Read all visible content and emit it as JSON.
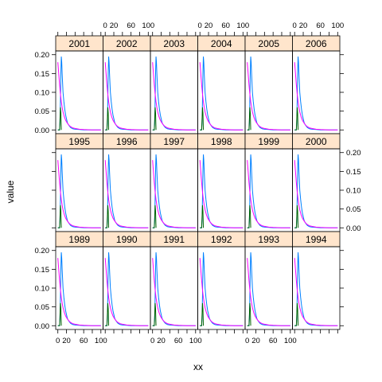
{
  "chart_data": {
    "type": "line",
    "layout": "lattice 6 columns x 3 rows",
    "xlabel": "xx",
    "ylabel": "value",
    "xlim": [
      -5,
      105
    ],
    "ylim": [
      -0.01,
      0.21
    ],
    "x_ticks": [
      0,
      20,
      60,
      100
    ],
    "x_tick_labels": [
      "0",
      "20",
      "60",
      "100"
    ],
    "y_ticks": [
      0.0,
      0.05,
      0.1,
      0.15,
      0.2
    ],
    "y_tick_labels": [
      "0.00",
      "0.05",
      "0.10",
      "0.15",
      "0.20"
    ],
    "panels": [
      {
        "label": "2001",
        "row": 0,
        "col": 0
      },
      {
        "label": "2002",
        "row": 0,
        "col": 1
      },
      {
        "label": "2003",
        "row": 0,
        "col": 2
      },
      {
        "label": "2004",
        "row": 0,
        "col": 3
      },
      {
        "label": "2005",
        "row": 0,
        "col": 4
      },
      {
        "label": "2006",
        "row": 0,
        "col": 5
      },
      {
        "label": "1995",
        "row": 1,
        "col": 0
      },
      {
        "label": "1996",
        "row": 1,
        "col": 1
      },
      {
        "label": "1997",
        "row": 1,
        "col": 2
      },
      {
        "label": "1998",
        "row": 1,
        "col": 3
      },
      {
        "label": "1999",
        "row": 1,
        "col": 4
      },
      {
        "label": "2000",
        "row": 1,
        "col": 5
      },
      {
        "label": "1989",
        "row": 2,
        "col": 0
      },
      {
        "label": "1990",
        "row": 2,
        "col": 1
      },
      {
        "label": "1991",
        "row": 2,
        "col": 2
      },
      {
        "label": "1992",
        "row": 2,
        "col": 3
      },
      {
        "label": "1993",
        "row": 2,
        "col": 4
      },
      {
        "label": "1994",
        "row": 2,
        "col": 5
      }
    ],
    "series": [
      {
        "color": "#0080ff",
        "x": [
          0,
          4,
          5,
          6,
          7,
          8,
          9,
          10,
          11,
          12,
          14,
          16,
          18,
          20,
          22,
          24,
          27,
          30,
          35,
          40,
          50,
          60,
          80,
          100
        ],
        "values": [
          0.0,
          0.0,
          0.02,
          0.08,
          0.15,
          0.195,
          0.18,
          0.15,
          0.125,
          0.1,
          0.075,
          0.055,
          0.04,
          0.03,
          0.02,
          0.015,
          0.01,
          0.006,
          0.003,
          0.002,
          0.001,
          0.0,
          0.0,
          0.0
        ]
      },
      {
        "color": "#ff00ff",
        "x": [
          0,
          2,
          4,
          6,
          8,
          10,
          12,
          15,
          18,
          21,
          24,
          28,
          32,
          36,
          40,
          50,
          60,
          80,
          100
        ],
        "values": [
          0.18,
          0.15,
          0.12,
          0.095,
          0.075,
          0.06,
          0.048,
          0.035,
          0.026,
          0.02,
          0.015,
          0.01,
          0.007,
          0.005,
          0.004,
          0.002,
          0.001,
          0.0,
          0.0
        ]
      },
      {
        "color": "#006400",
        "x": [
          0,
          4,
          5,
          6,
          7,
          8
        ],
        "values": [
          0.0,
          0.0,
          0.03,
          0.06,
          0.045,
          0.0
        ]
      }
    ]
  }
}
